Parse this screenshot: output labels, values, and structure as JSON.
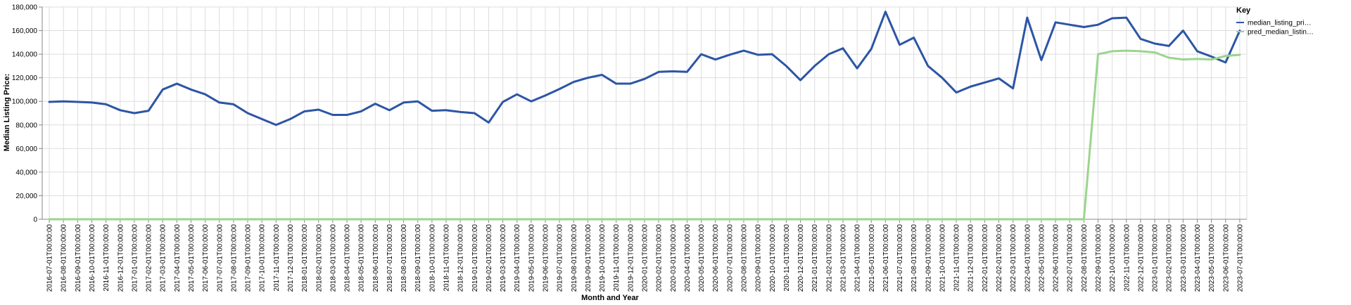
{
  "chart_data": {
    "type": "line",
    "title": "",
    "xlabel": "Month and Year",
    "ylabel": "Median Listing Price:",
    "ylim": [
      0,
      180000
    ],
    "yticks": [
      0,
      20000,
      40000,
      60000,
      80000,
      100000,
      120000,
      140000,
      160000,
      180000
    ],
    "ytick_labels": [
      "0",
      "20,000",
      "40,000",
      "60,000",
      "80,000",
      "100,000",
      "120,000",
      "140,000",
      "160,000",
      "180,000"
    ],
    "grid": true,
    "legend": {
      "title": "Key",
      "position": "right",
      "entries": [
        "median_listing_pri…",
        "pred_median_listin…"
      ]
    },
    "categories": [
      "2016-07-01T00:00:00",
      "2016-08-01T00:00:00",
      "2016-09-01T00:00:00",
      "2016-10-01T00:00:00",
      "2016-11-01T00:00:00",
      "2016-12-01T00:00:00",
      "2017-01-01T00:00:00",
      "2017-02-01T00:00:00",
      "2017-03-01T00:00:00",
      "2017-04-01T00:00:00",
      "2017-05-01T00:00:00",
      "2017-06-01T00:00:00",
      "2017-07-01T00:00:00",
      "2017-08-01T00:00:00",
      "2017-09-01T00:00:00",
      "2017-10-01T00:00:00",
      "2017-11-01T00:00:00",
      "2017-12-01T00:00:00",
      "2018-01-01T00:00:00",
      "2018-02-01T00:00:00",
      "2018-03-01T00:00:00",
      "2018-04-01T00:00:00",
      "2018-05-01T00:00:00",
      "2018-06-01T00:00:00",
      "2018-07-01T00:00:00",
      "2018-08-01T00:00:00",
      "2018-09-01T00:00:00",
      "2018-10-01T00:00:00",
      "2018-11-01T00:00:00",
      "2018-12-01T00:00:00",
      "2019-01-01T00:00:00",
      "2019-02-01T00:00:00",
      "2019-03-01T00:00:00",
      "2019-04-01T00:00:00",
      "2019-05-01T00:00:00",
      "2019-06-01T00:00:00",
      "2019-07-01T00:00:00",
      "2019-08-01T00:00:00",
      "2019-09-01T00:00:00",
      "2019-10-01T00:00:00",
      "2019-11-01T00:00:00",
      "2019-12-01T00:00:00",
      "2020-01-01T00:00:00",
      "2020-02-01T00:00:00",
      "2020-03-01T00:00:00",
      "2020-04-01T00:00:00",
      "2020-05-01T00:00:00",
      "2020-06-01T00:00:00",
      "2020-07-01T00:00:00",
      "2020-08-01T00:00:00",
      "2020-09-01T00:00:00",
      "2020-10-01T00:00:00",
      "2020-11-01T00:00:00",
      "2020-12-01T00:00:00",
      "2021-01-01T00:00:00",
      "2021-02-01T00:00:00",
      "2021-03-01T00:00:00",
      "2021-04-01T00:00:00",
      "2021-05-01T00:00:00",
      "2021-06-01T00:00:00",
      "2021-07-01T00:00:00",
      "2021-08-01T00:00:00",
      "2021-09-01T00:00:00",
      "2021-10-01T00:00:00",
      "2021-11-01T00:00:00",
      "2021-12-01T00:00:00",
      "2022-01-01T00:00:00",
      "2022-02-01T00:00:00",
      "2022-03-01T00:00:00",
      "2022-04-01T00:00:00",
      "2022-05-01T00:00:00",
      "2022-06-01T00:00:00",
      "2022-07-01T00:00:00",
      "2022-08-01T00:00:00",
      "2022-09-01T00:00:00",
      "2022-10-01T00:00:00",
      "2022-11-01T00:00:00",
      "2022-12-01T00:00:00",
      "2023-01-01T00:00:00",
      "2023-02-01T00:00:00",
      "2023-03-01T00:00:00",
      "2023-04-01T00:00:00",
      "2023-05-01T00:00:00",
      "2023-06-01T00:00:00",
      "2023-07-01T00:00:00"
    ],
    "series": [
      {
        "name": "median_listing_pri…",
        "color": "#2c55a5",
        "values": [
          99500,
          100000,
          99500,
          99000,
          97500,
          92500,
          90000,
          92000,
          110000,
          115000,
          110000,
          106000,
          99000,
          97500,
          90000,
          85000,
          80000,
          85000,
          91500,
          93000,
          88500,
          88500,
          91500,
          98000,
          92500,
          99000,
          100000,
          92000,
          92500,
          91000,
          90000,
          82000,
          99500,
          106000,
          100000,
          105000,
          110500,
          116500,
          120000,
          122500,
          115000,
          115000,
          119000,
          125000,
          125500,
          125000,
          140000,
          135500,
          139500,
          143000,
          139500,
          140000,
          130000,
          118000,
          130000,
          140000,
          145000,
          128000,
          144500,
          176000,
          148000,
          154000,
          130000,
          120000,
          107500,
          112500,
          116000,
          119500,
          111000,
          171000,
          135000,
          167000,
          165000,
          163000,
          165000,
          170500,
          171000,
          153000,
          149000,
          147000,
          160000,
          142500,
          138000,
          133000,
          160000
        ]
      },
      {
        "name": "pred_median_listin…",
        "color": "#9ad58f",
        "values": [
          0,
          0,
          0,
          0,
          0,
          0,
          0,
          0,
          0,
          0,
          0,
          0,
          0,
          0,
          0,
          0,
          0,
          0,
          0,
          0,
          0,
          0,
          0,
          0,
          0,
          0,
          0,
          0,
          0,
          0,
          0,
          0,
          0,
          0,
          0,
          0,
          0,
          0,
          0,
          0,
          0,
          0,
          0,
          0,
          0,
          0,
          0,
          0,
          0,
          0,
          0,
          0,
          0,
          0,
          0,
          0,
          0,
          0,
          0,
          0,
          0,
          0,
          0,
          0,
          0,
          0,
          0,
          0,
          0,
          0,
          0,
          0,
          0,
          0,
          140000,
          142500,
          143000,
          142500,
          141500,
          137000,
          135500,
          136000,
          135500,
          138500,
          139500
        ]
      }
    ]
  }
}
